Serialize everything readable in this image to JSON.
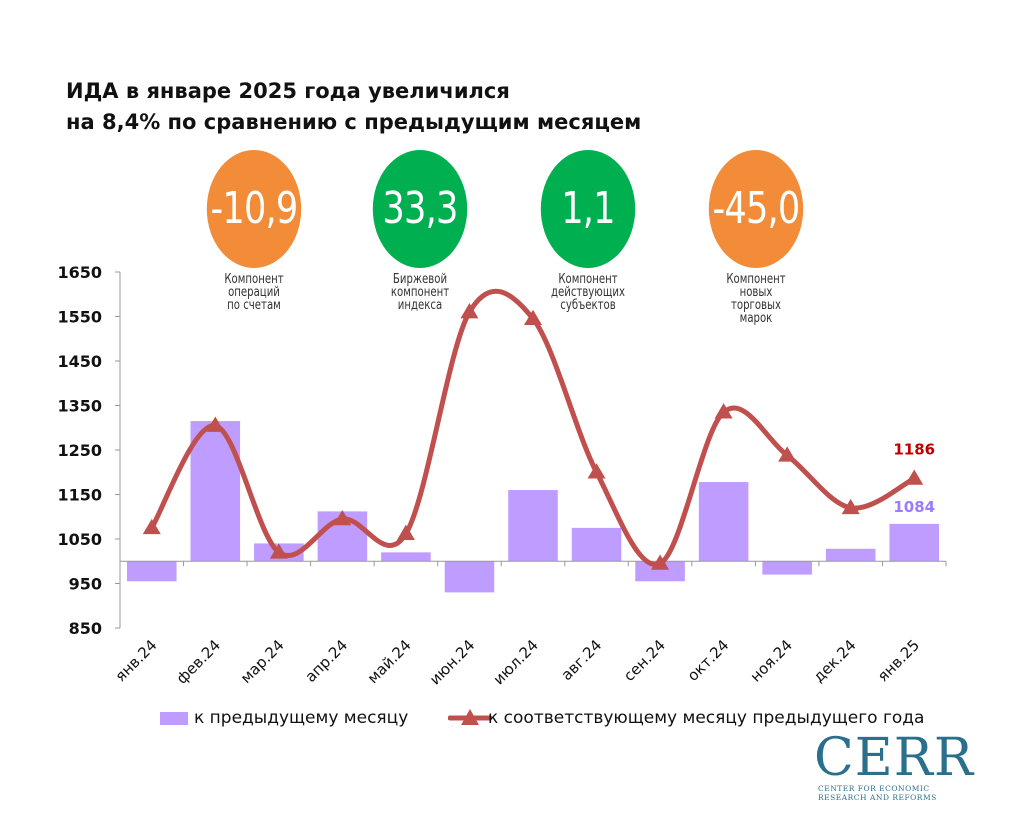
{
  "title": {
    "line1": "ИДА в январе 2025 года увеличился",
    "line2": "на 8,4% по сравнению с предыдущим месяцем"
  },
  "indicators": [
    {
      "value": "-10,9",
      "label": "Компонент\nопераций\nпо счетам",
      "color": "#f28c38"
    },
    {
      "value": "33,3",
      "label": "Биржевой\nкомпонент\nиндекса",
      "color": "#00b050"
    },
    {
      "value": "1,1",
      "label": "Компонент\nдействующих\nсубъектов",
      "color": "#00b050"
    },
    {
      "value": "-45,0",
      "label": "Компонент\nновых\nторговых\nмарок",
      "color": "#f28c38"
    }
  ],
  "legend": {
    "bar": "к предыдущему месяцу",
    "line": "к соответствующему месяцу предыдущего года"
  },
  "logo": {
    "name": "CERR",
    "sub1": "CENTER FOR ECONOMIC",
    "sub2": "RESEARCH AND REFORMS"
  },
  "chart_data": {
    "type": "bar+line",
    "categories": [
      "янв.24",
      "фев.24",
      "мар.24",
      "апр.24",
      "май.24",
      "июн.24",
      "июл.24",
      "авг.24",
      "сен.24",
      "окт.24",
      "ноя.24",
      "дек.24",
      "янв.25"
    ],
    "baseline": 1000,
    "ylim": [
      850,
      1650
    ],
    "yticks": [
      850,
      950,
      1050,
      1150,
      1250,
      1350,
      1450,
      1550,
      1650
    ],
    "series": [
      {
        "name": "к предыдущему месяцу",
        "type": "bar",
        "color": "#bf9cff",
        "values": [
          955,
          1315,
          1040,
          1112,
          1020,
          930,
          1160,
          1075,
          955,
          1178,
          970,
          1028,
          1084
        ]
      },
      {
        "name": "к соответствующему месяцу предыдущего года",
        "type": "line",
        "color": "#c0504d",
        "values": [
          1075,
          1305,
          1020,
          1095,
          1062,
          1560,
          1545,
          1200,
          995,
          1335,
          1238,
          1120,
          1186
        ]
      }
    ],
    "data_labels": [
      {
        "series": 0,
        "index": 12,
        "text": "1084",
        "color": "#9b7bff"
      },
      {
        "series": 1,
        "index": 12,
        "text": "1186",
        "color": "#c00000"
      }
    ]
  }
}
